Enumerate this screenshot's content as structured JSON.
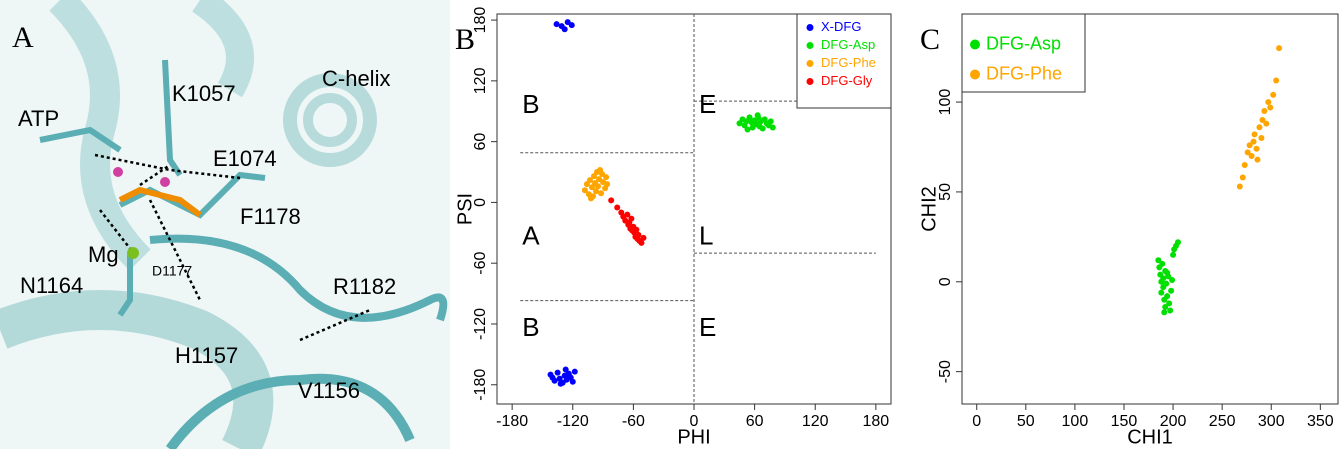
{
  "structure_panel": {
    "panel_label": "A",
    "labels": [
      "ATP",
      "K1057",
      "C-helix",
      "E1074",
      "F1178",
      "Mg",
      "D1177",
      "N1164",
      "R1182",
      "H1157",
      "V1156"
    ]
  },
  "chart_data": [
    {
      "type": "scatter",
      "panel_label": "B",
      "x_label": "PHI",
      "y_label": "PSI",
      "xlim": [
        -195,
        195
      ],
      "ylim": [
        -199,
        186
      ],
      "xticks": [
        -180,
        -120,
        -60,
        0,
        60,
        120,
        180
      ],
      "yticks": [
        -180,
        -120,
        -60,
        0,
        60,
        120,
        180
      ],
      "legend": "upper right",
      "annotations": [
        "B",
        "E",
        "A",
        "L",
        "B",
        "E"
      ],
      "zero_line": 0,
      "region_lines": [
        {
          "y": 49,
          "x": [
            -172,
            0
          ]
        },
        {
          "y": -97,
          "x": [
            -172,
            0
          ]
        },
        {
          "y": 100,
          "x": [
            0,
            180
          ]
        },
        {
          "y": -50,
          "x": [
            0,
            180
          ]
        }
      ],
      "series": [
        {
          "name": "X-DFG",
          "color": "#0000ff",
          "x": [
            -136,
            -131,
            -128,
            -125,
            -121,
            -142,
            -138,
            -135,
            -133,
            -130,
            -128,
            -126,
            -124,
            -122,
            -120,
            -118,
            -132,
            -127,
            -140,
            -123
          ],
          "values": [
            176,
            174,
            171,
            178,
            175,
            -170,
            -176,
            -168,
            -174,
            -178,
            -171,
            -175,
            -169,
            -173,
            -177,
            -167,
            -179,
            -165,
            -173,
            -172
          ]
        },
        {
          "name": "DFG-Asp",
          "color": "#00e000",
          "x": [
            45,
            48,
            50,
            52,
            55,
            57,
            58,
            60,
            62,
            63,
            65,
            66,
            68,
            70,
            72,
            74,
            76,
            78,
            53,
            64
          ],
          "values": [
            78,
            82,
            76,
            80,
            84,
            79,
            74,
            81,
            77,
            86,
            75,
            80,
            73,
            82,
            78,
            76,
            80,
            74,
            72,
            83
          ]
        },
        {
          "name": "DFG-Phe",
          "color": "#ffa500",
          "x": [
            -108,
            -106,
            -104,
            -103,
            -101,
            -100,
            -99,
            -98,
            -97,
            -96,
            -95,
            -94,
            -92,
            -91,
            -90,
            -88,
            -87,
            -86,
            -102,
            -93
          ],
          "values": [
            12,
            18,
            8,
            22,
            15,
            6,
            26,
            19,
            11,
            30,
            16,
            23,
            9,
            28,
            20,
            14,
            25,
            18,
            4,
            32
          ]
        },
        {
          "name": "DFG-Gly",
          "color": "#ff0000",
          "x": [
            -82,
            -76,
            -72,
            -70,
            -68,
            -66,
            -65,
            -64,
            -63,
            -62,
            -61,
            -60,
            -59,
            -58,
            -57,
            -56,
            -55,
            -54,
            -52,
            -50
          ],
          "values": [
            2,
            -5,
            -10,
            -14,
            -18,
            -12,
            -22,
            -20,
            -26,
            -16,
            -28,
            -24,
            -30,
            -34,
            -27,
            -36,
            -32,
            -38,
            -40,
            -35
          ]
        }
      ]
    },
    {
      "type": "scatter",
      "panel_label": "C",
      "x_label": "CHI1",
      "y_label": "CHI2",
      "xlim": [
        -15,
        368
      ],
      "ylim": [
        -68,
        149
      ],
      "xticks": [
        0,
        50,
        100,
        150,
        200,
        250,
        300,
        350
      ],
      "yticks": [
        -50,
        0,
        50,
        100
      ],
      "legend": "upper left",
      "series": [
        {
          "name": "DFG-Asp",
          "color": "#00e000",
          "x": [
            185,
            186,
            187,
            188,
            188,
            189,
            190,
            190,
            191,
            192,
            192,
            193,
            194,
            195,
            196,
            197,
            198,
            199,
            200,
            201,
            203,
            205,
            191,
            194
          ],
          "values": [
            12,
            8,
            4,
            0,
            -6,
            10,
            -3,
            2,
            -10,
            6,
            -14,
            -1,
            -8,
            3,
            -12,
            -16,
            -5,
            1,
            15,
            18,
            20,
            22,
            -17,
            5
          ]
        },
        {
          "name": "DFG-Phe",
          "color": "#ffa500",
          "x": [
            268,
            271,
            273,
            276,
            278,
            280,
            282,
            283,
            285,
            286,
            288,
            290,
            291,
            293,
            295,
            297,
            299,
            302,
            305,
            308
          ],
          "values": [
            53,
            58,
            65,
            72,
            76,
            70,
            78,
            82,
            74,
            68,
            86,
            80,
            90,
            95,
            88,
            100,
            97,
            104,
            112,
            130
          ]
        }
      ]
    }
  ]
}
